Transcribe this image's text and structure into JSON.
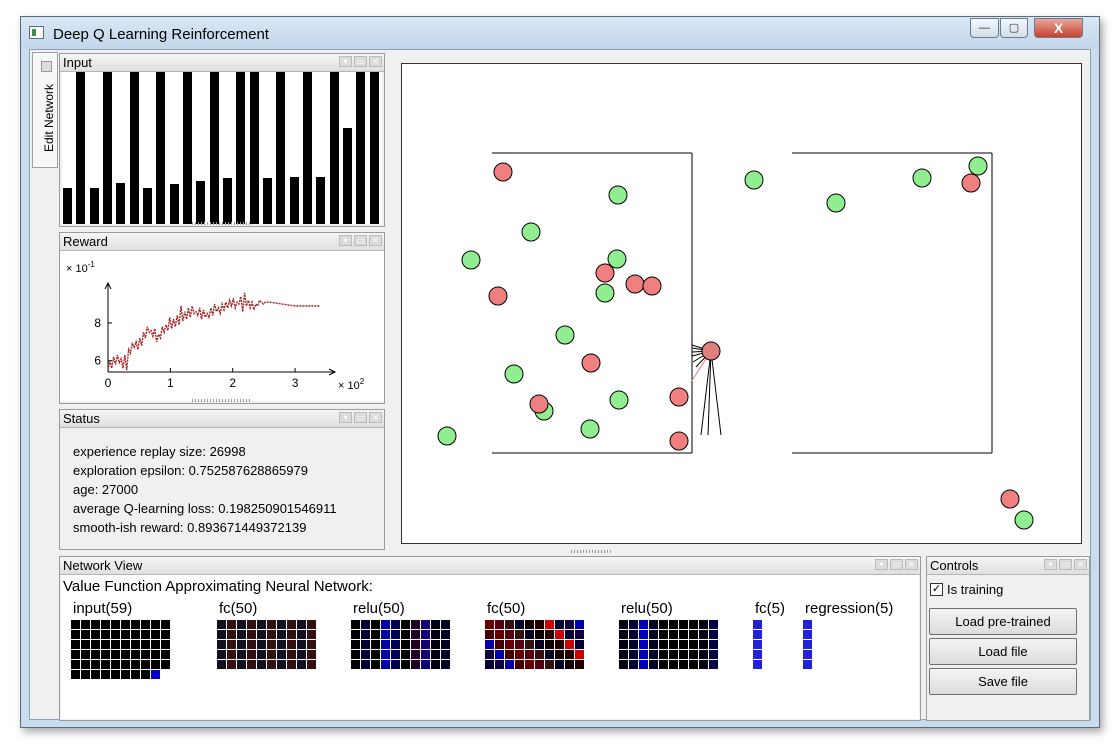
{
  "window": {
    "title": "Deep Q Learning Reinforcement",
    "minimize": "—",
    "maximize": "▢",
    "close": "X"
  },
  "sidetab": {
    "label": "Edit Network"
  },
  "input_panel": {
    "title": "Input",
    "bar_values": [
      0.24,
      1.0,
      0.24,
      1.0,
      0.27,
      1.0,
      0.24,
      1.0,
      0.26,
      1.0,
      0.28,
      1.0,
      0.3,
      1.0,
      1.0,
      0.3,
      1.0,
      0.31,
      1.0,
      0.31,
      1.0,
      0.63,
      1.0,
      1.0
    ]
  },
  "reward_panel": {
    "title": "Reward",
    "chart_data": {
      "type": "line",
      "title": "",
      "xlabel": "",
      "ylabel": "",
      "x_multiplier_label": "× 10",
      "x_multiplier_exp": "2",
      "y_multiplier_label": "× 10",
      "y_multiplier_exp": "-1",
      "x_ticks": [
        "0",
        "1",
        "2",
        "3"
      ],
      "y_ticks": [
        "6",
        "8"
      ],
      "xlim": [
        0,
        3.4
      ],
      "ylim": [
        5.4,
        9.8
      ],
      "line_color": "#a02020",
      "x": [
        0,
        0.03,
        0.06,
        0.09,
        0.12,
        0.15,
        0.18,
        0.21,
        0.24,
        0.27,
        0.3,
        0.33,
        0.36,
        0.39,
        0.42,
        0.45,
        0.48,
        0.51,
        0.54,
        0.57,
        0.6,
        0.63,
        0.66,
        0.69,
        0.72,
        0.75,
        0.78,
        0.81,
        0.84,
        0.87,
        0.9,
        0.93,
        0.96,
        0.99,
        1.02,
        1.05,
        1.08,
        1.11,
        1.14,
        1.17,
        1.2,
        1.23,
        1.26,
        1.29,
        1.32,
        1.35,
        1.38,
        1.41,
        1.44,
        1.47,
        1.5,
        1.53,
        1.56,
        1.59,
        1.62,
        1.65,
        1.68,
        1.71,
        1.74,
        1.77,
        1.8,
        1.83,
        1.86,
        1.89,
        1.92,
        1.95,
        1.98,
        2.01,
        2.04,
        2.07,
        2.1,
        2.13,
        2.16,
        2.19,
        2.22,
        2.25,
        2.28,
        2.31,
        2.34,
        2.37,
        2.4,
        2.43,
        2.46,
        2.49,
        2.52,
        2.6,
        2.8,
        3.0,
        3.2,
        3.4
      ],
      "y": [
        5.5,
        6.0,
        5.6,
        6.2,
        5.8,
        6.3,
        5.9,
        6.1,
        5.6,
        6.3,
        5.5,
        6.6,
        6.4,
        6.9,
        6.7,
        7.0,
        6.6,
        7.2,
        6.8,
        7.5,
        7.2,
        7.8,
        7.5,
        7.6,
        7.3,
        7.7,
        7.0,
        7.4,
        7.2,
        7.8,
        7.5,
        7.9,
        7.6,
        8.3,
        7.7,
        8.2,
        7.8,
        8.4,
        7.9,
        8.9,
        8.1,
        8.6,
        8.2,
        8.8,
        8.3,
        8.9,
        8.5,
        8.6,
        8.4,
        8.8,
        8.2,
        8.7,
        8.3,
        8.5,
        8.3,
        8.8,
        8.4,
        9.0,
        8.6,
        8.8,
        8.5,
        9.0,
        8.7,
        9.1,
        8.8,
        9.2,
        8.9,
        9.3,
        8.8,
        9.1,
        9.0,
        9.4,
        8.6,
        9.6,
        8.9,
        9.2,
        8.8,
        9.1,
        8.7,
        9.0,
        8.9,
        9.2,
        9.1,
        9.0,
        9.1,
        9.1,
        9.0,
        8.9,
        8.9,
        8.9
      ]
    }
  },
  "status_panel": {
    "title": "Status",
    "lines": [
      "experience replay size: 26998",
      "exploration epsilon: 0.752587628865979",
      "age: 27000",
      "average Q-learning loss: 0.198250901546911",
      "smooth-ish reward: 0.893671449372139"
    ]
  },
  "network_view": {
    "title": "Network View",
    "heading": "Value Function Approximating Neural Network:",
    "layers": [
      {
        "label": "input(59)",
        "cols": 10,
        "count": 59
      },
      {
        "label": "fc(50)",
        "cols": 10,
        "count": 50
      },
      {
        "label": "relu(50)",
        "cols": 10,
        "count": 50
      },
      {
        "label": "fc(50)",
        "cols": 10,
        "count": 50
      },
      {
        "label": "relu(50)",
        "cols": 10,
        "count": 50
      },
      {
        "label": "fc(5)",
        "cols": 1,
        "count": 5
      },
      {
        "label": "regression(5)",
        "cols": 1,
        "count": 5
      }
    ]
  },
  "controls": {
    "title": "Controls",
    "is_training_label": "Is training",
    "is_training_checked": "✓",
    "load_pretrained": "Load pre-trained",
    "load_file": "Load file",
    "save_file": "Save file"
  },
  "simulation": {
    "apple_color": "#90ee90",
    "poison_color": "#f08080",
    "agent_color": "#e07f7f"
  },
  "panel_buttons": {
    "a": "▾",
    "b": "▭",
    "c": "✕"
  }
}
